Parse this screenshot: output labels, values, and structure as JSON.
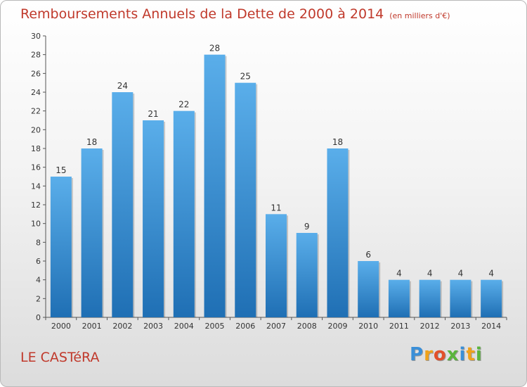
{
  "header": {
    "title": "Remboursements Annuels de la Dette de 2000 à 2014",
    "subtitle": "(en milliers d'€)"
  },
  "footer": {
    "commune": "LE CASTéRA",
    "brand_letters": [
      "P",
      "r",
      "o",
      "x",
      "i",
      "t",
      "i"
    ]
  },
  "colors": {
    "title": "#c0392b",
    "bar_top": "#5aaeea",
    "bar_bottom": "#1f6fb4",
    "brand": [
      "#3a8fd8",
      "#f0a21a",
      "#e2502a",
      "#5ab53c",
      "#3a8fd8",
      "#f0a21a",
      "#5ab53c"
    ]
  },
  "chart_data": {
    "type": "bar",
    "categories": [
      "2000",
      "2001",
      "2002",
      "2003",
      "2004",
      "2005",
      "2006",
      "2007",
      "2008",
      "2009",
      "2010",
      "2011",
      "2012",
      "2013",
      "2014"
    ],
    "values": [
      15,
      18,
      24,
      21,
      22,
      28,
      25,
      11,
      9,
      18,
      6,
      4,
      4,
      4,
      4
    ],
    "title": "Remboursements Annuels de la Dette de 2000 à 2014",
    "ylim": [
      0,
      30
    ],
    "yticks": [
      0,
      2,
      4,
      6,
      8,
      10,
      12,
      14,
      16,
      18,
      20,
      22,
      24,
      26,
      28,
      30
    ],
    "grid": false,
    "data_labels": true
  }
}
